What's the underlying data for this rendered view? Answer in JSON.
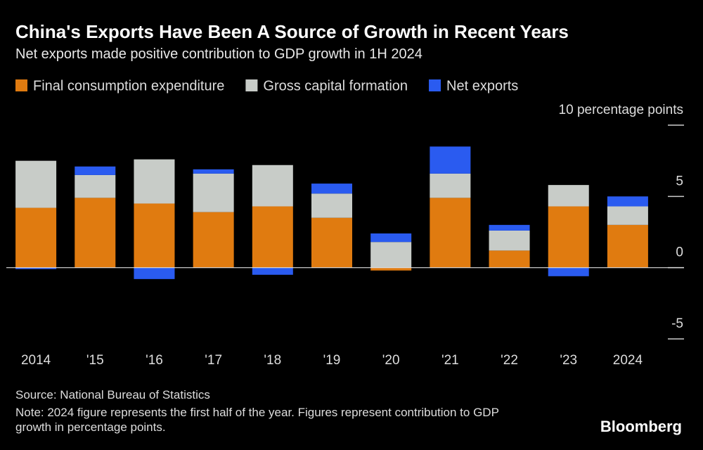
{
  "chart_data": {
    "type": "stacked_bar",
    "title": "China's Exports Have Been A Source of Growth in Recent Years",
    "subtitle": "Net exports made positive contribution to GDP growth in 1H 2024",
    "categories": [
      "2014",
      "'15",
      "'16",
      "'17",
      "'18",
      "'19",
      "'20",
      "'21",
      "'22",
      "'23",
      "2024"
    ],
    "series": [
      {
        "name": "Final consumption expenditure",
        "color": "#e07b10",
        "values": [
          4.2,
          4.9,
          4.5,
          3.9,
          4.3,
          3.5,
          -0.2,
          4.9,
          1.2,
          4.3,
          3.0
        ]
      },
      {
        "name": "Gross capital formation",
        "color": "#c8ccc8",
        "values": [
          3.3,
          1.6,
          3.1,
          2.7,
          2.9,
          1.7,
          1.8,
          1.7,
          1.4,
          1.5,
          1.3
        ]
      },
      {
        "name": "Net exports",
        "color": "#2a5bf0",
        "values": [
          -0.1,
          0.6,
          -0.8,
          0.3,
          -0.5,
          0.7,
          0.6,
          1.9,
          0.4,
          -0.6,
          0.7
        ]
      }
    ],
    "ylim": [
      -5,
      10
    ],
    "yticks": [
      {
        "value": 10,
        "label": "10 percentage points"
      },
      5,
      0,
      -5
    ],
    "source": "Source: National Bureau of Statistics",
    "note": "Note: 2024 figure represents the first half of the year. Figures represent contribution to GDP growth in percentage points.",
    "brand": "Bloomberg"
  }
}
